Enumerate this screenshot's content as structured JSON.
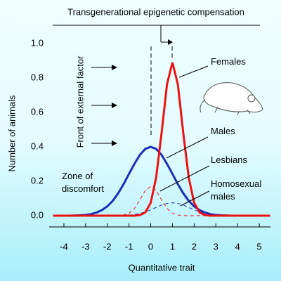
{
  "chart_data": {
    "type": "line",
    "title": "Transgenerational epigenetic compensation",
    "x_label": "Quantitative trait",
    "y_label": "Number of animals",
    "annotations": [
      "Front of external factor",
      "Zone of discomfort"
    ],
    "x": [
      -4.5,
      -4.25,
      -4,
      -3.75,
      -3.5,
      -3.25,
      -3,
      -2.75,
      -2.5,
      -2.25,
      -2,
      -1.75,
      -1.5,
      -1.25,
      -1,
      -0.75,
      -0.5,
      -0.25,
      0,
      0.25,
      0.5,
      0.75,
      1,
      1.25,
      1.5,
      1.75,
      2,
      2.25,
      2.5,
      2.75,
      3,
      3.25,
      3.5,
      3.75,
      4,
      4.25,
      4.5,
      4.75,
      5,
      5.25,
      5.5
    ],
    "series": [
      {
        "name": "Females",
        "color": "#ee1111",
        "style": "solid",
        "values": [
          0,
          0,
          0,
          0,
          0,
          0,
          0,
          0,
          0,
          0,
          0,
          0,
          0,
          0,
          0,
          0,
          0.003,
          0.019,
          0.075,
          0.222,
          0.48,
          0.763,
          0.89,
          0.763,
          0.48,
          0.222,
          0.075,
          0.019,
          0.003,
          0,
          0,
          0,
          0,
          0,
          0,
          0,
          0,
          0,
          0,
          0,
          0
        ]
      },
      {
        "name": "Males",
        "color": "#1a2fb8",
        "style": "solid",
        "values": [
          0,
          0,
          0,
          0,
          0.001,
          0.002,
          0.004,
          0.009,
          0.018,
          0.032,
          0.054,
          0.086,
          0.13,
          0.183,
          0.243,
          0.301,
          0.353,
          0.388,
          0.4,
          0.388,
          0.353,
          0.301,
          0.243,
          0.183,
          0.13,
          0.086,
          0.054,
          0.032,
          0.018,
          0.009,
          0.004,
          0.002,
          0.001,
          0,
          0,
          0,
          0,
          0,
          0,
          0,
          0
        ]
      },
      {
        "name": "Lesbians",
        "color": "#ee1111",
        "style": "dashed",
        "values": [
          0,
          0,
          0,
          0,
          0,
          0,
          0,
          0,
          0,
          0,
          0,
          0,
          0.001,
          0.004,
          0.014,
          0.042,
          0.092,
          0.146,
          0.17,
          0.146,
          0.092,
          0.042,
          0.014,
          0.004,
          0.001,
          0,
          0,
          0,
          0,
          0,
          0,
          0,
          0,
          0,
          0,
          0,
          0,
          0,
          0,
          0,
          0
        ]
      },
      {
        "name": "Homosexual males",
        "color": "#1a2fb8",
        "style": "dashed",
        "values": [
          0,
          0,
          0,
          0,
          0,
          0,
          0,
          0,
          0,
          0,
          0,
          0,
          0,
          0.001,
          0.003,
          0.007,
          0.013,
          0.022,
          0.034,
          0.048,
          0.062,
          0.071,
          0.075,
          0.071,
          0.062,
          0.048,
          0.034,
          0.022,
          0.013,
          0.007,
          0.003,
          0.001,
          0,
          0,
          0,
          0,
          0,
          0,
          0,
          0,
          0
        ]
      }
    ],
    "xlim": [
      -4.5,
      5.5
    ],
    "xticks": [
      -4,
      -3,
      -2,
      -1,
      0,
      1,
      2,
      3,
      4,
      5
    ],
    "ylim": [
      0,
      1
    ],
    "yticks": [
      {
        "value": 0,
        "label": "0.0"
      },
      {
        "value": 0.2,
        "label": "0.2"
      },
      {
        "value": 0.4,
        "label": "0.4"
      },
      {
        "value": 0.6,
        "label": "0.6"
      },
      {
        "value": 0.8,
        "label": "0.8"
      },
      {
        "value": 1,
        "label": "1.0"
      }
    ],
    "grid": false
  }
}
